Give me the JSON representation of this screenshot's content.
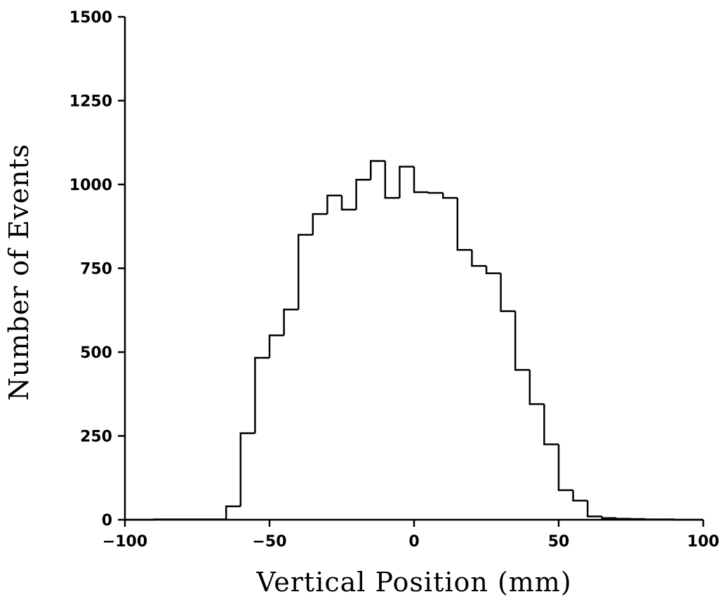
{
  "chart_data": {
    "type": "histogram",
    "title": "",
    "xlabel": "Vertical Position (mm)",
    "ylabel": "Number of Events",
    "xlim": [
      -100,
      100
    ],
    "ylim": [
      0,
      1500
    ],
    "xticks": [
      -100,
      -50,
      0,
      50,
      100
    ],
    "yticks": [
      0,
      250,
      500,
      750,
      1000,
      1250,
      1500
    ],
    "xtick_labels": [
      "−100",
      "−50",
      "0",
      "50",
      "100"
    ],
    "ytick_labels": [
      "0",
      "250",
      "500",
      "750",
      "1000",
      "1250",
      "1500"
    ],
    "grid": false,
    "bin_width": 5,
    "bins": [
      {
        "x0": -100,
        "x1": -95,
        "value": 0
      },
      {
        "x0": -95,
        "x1": -90,
        "value": 0
      },
      {
        "x0": -90,
        "x1": -85,
        "value": 1
      },
      {
        "x0": -85,
        "x1": -80,
        "value": 1
      },
      {
        "x0": -80,
        "x1": -75,
        "value": 1
      },
      {
        "x0": -75,
        "x1": -70,
        "value": 1
      },
      {
        "x0": -70,
        "x1": -65,
        "value": 1
      },
      {
        "x0": -65,
        "x1": -60,
        "value": 40
      },
      {
        "x0": -60,
        "x1": -55,
        "value": 258
      },
      {
        "x0": -55,
        "x1": -50,
        "value": 483
      },
      {
        "x0": -50,
        "x1": -45,
        "value": 550
      },
      {
        "x0": -45,
        "x1": -40,
        "value": 627
      },
      {
        "x0": -40,
        "x1": -35,
        "value": 850
      },
      {
        "x0": -35,
        "x1": -30,
        "value": 912
      },
      {
        "x0": -30,
        "x1": -25,
        "value": 967
      },
      {
        "x0": -25,
        "x1": -20,
        "value": 925
      },
      {
        "x0": -20,
        "x1": -15,
        "value": 1014
      },
      {
        "x0": -15,
        "x1": -10,
        "value": 1070
      },
      {
        "x0": -10,
        "x1": -5,
        "value": 960
      },
      {
        "x0": -5,
        "x1": 0,
        "value": 1053
      },
      {
        "x0": 0,
        "x1": 5,
        "value": 977
      },
      {
        "x0": 5,
        "x1": 10,
        "value": 975
      },
      {
        "x0": 10,
        "x1": 15,
        "value": 960
      },
      {
        "x0": 15,
        "x1": 20,
        "value": 805
      },
      {
        "x0": 20,
        "x1": 25,
        "value": 757
      },
      {
        "x0": 25,
        "x1": 30,
        "value": 735
      },
      {
        "x0": 30,
        "x1": 35,
        "value": 622
      },
      {
        "x0": 35,
        "x1": 40,
        "value": 447
      },
      {
        "x0": 40,
        "x1": 45,
        "value": 345
      },
      {
        "x0": 45,
        "x1": 50,
        "value": 225
      },
      {
        "x0": 50,
        "x1": 55,
        "value": 88
      },
      {
        "x0": 55,
        "x1": 60,
        "value": 57
      },
      {
        "x0": 60,
        "x1": 65,
        "value": 10
      },
      {
        "x0": 65,
        "x1": 70,
        "value": 5
      },
      {
        "x0": 70,
        "x1": 75,
        "value": 3
      },
      {
        "x0": 75,
        "x1": 80,
        "value": 2
      },
      {
        "x0": 80,
        "x1": 85,
        "value": 1
      },
      {
        "x0": 85,
        "x1": 90,
        "value": 1
      },
      {
        "x0": 90,
        "x1": 95,
        "value": 0
      },
      {
        "x0": 95,
        "x1": 100,
        "value": 0
      }
    ]
  }
}
